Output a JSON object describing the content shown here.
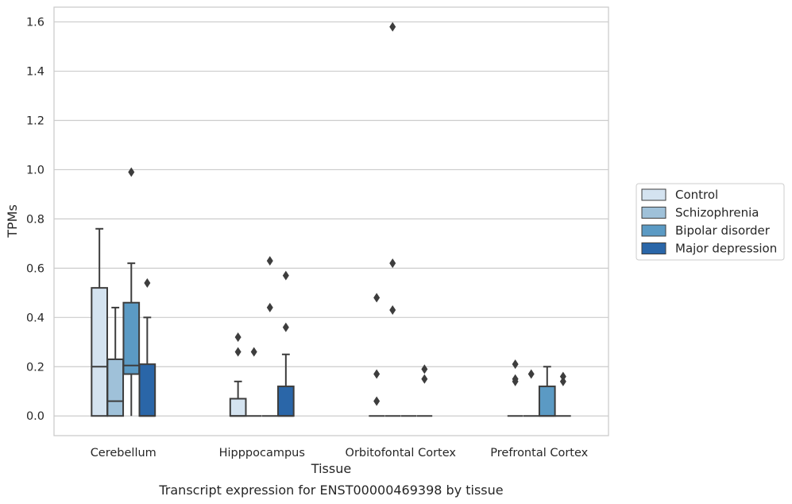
{
  "chart_data": {
    "type": "box",
    "title": "",
    "caption": "Transcript expression for ENST00000469398 by tissue",
    "xlabel": "Tissue",
    "ylabel": "TPMs",
    "ylim": [
      -0.08,
      1.66
    ],
    "yticks": [
      "0.0",
      "0.2",
      "0.4",
      "0.6",
      "0.8",
      "1.0",
      "1.2",
      "1.4",
      "1.6"
    ],
    "grid": true,
    "legend_position": "right",
    "categories": [
      "Cerebellum",
      "Hipppocampus",
      "Orbitofontal Cortex",
      "Prefrontal Cortex"
    ],
    "series": [
      {
        "name": "Control",
        "color": "#d4e3f0",
        "boxes": [
          {
            "whislo": 0.0,
            "q1": 0.0,
            "med": 0.2,
            "q3": 0.52,
            "whishi": 0.76,
            "fliers": []
          },
          {
            "whislo": 0.0,
            "q1": 0.0,
            "med": 0.0,
            "q3": 0.07,
            "whishi": 0.14,
            "fliers": [
              0.26,
              0.32
            ]
          },
          {
            "whislo": 0.0,
            "q1": 0.0,
            "med": 0.0,
            "q3": 0.0,
            "whishi": 0.0,
            "fliers": [
              0.06,
              0.17,
              0.48
            ]
          },
          {
            "whislo": 0.0,
            "q1": 0.0,
            "med": 0.0,
            "q3": 0.0,
            "whishi": 0.0,
            "fliers": [
              0.14,
              0.15,
              0.21
            ]
          }
        ]
      },
      {
        "name": "Schizophrenia",
        "color": "#9fc1d9",
        "boxes": [
          {
            "whislo": 0.0,
            "q1": 0.0,
            "med": 0.06,
            "q3": 0.23,
            "whishi": 0.44,
            "fliers": []
          },
          {
            "whislo": 0.0,
            "q1": 0.0,
            "med": 0.0,
            "q3": 0.0,
            "whishi": 0.0,
            "fliers": [
              0.26
            ]
          },
          {
            "whislo": 0.0,
            "q1": 0.0,
            "med": 0.0,
            "q3": 0.0,
            "whishi": 0.0,
            "fliers": [
              0.43,
              0.62,
              1.58
            ]
          },
          {
            "whislo": 0.0,
            "q1": 0.0,
            "med": 0.0,
            "q3": 0.0,
            "whishi": 0.0,
            "fliers": [
              0.17
            ]
          }
        ]
      },
      {
        "name": "Bipolar disorder",
        "color": "#5b9ac4",
        "boxes": [
          {
            "whislo": 0.0,
            "q1": 0.17,
            "med": 0.205,
            "q3": 0.46,
            "whishi": 0.62,
            "fliers": [
              0.99
            ]
          },
          {
            "whislo": 0.0,
            "q1": 0.0,
            "med": 0.0,
            "q3": 0.0,
            "whishi": 0.0,
            "fliers": [
              0.44,
              0.63
            ]
          },
          {
            "whislo": 0.0,
            "q1": 0.0,
            "med": 0.0,
            "q3": 0.0,
            "whishi": 0.0,
            "fliers": []
          },
          {
            "whislo": 0.0,
            "q1": 0.0,
            "med": 0.0,
            "q3": 0.12,
            "whishi": 0.2,
            "fliers": []
          }
        ]
      },
      {
        "name": "Major depression",
        "color": "#2a66a8",
        "boxes": [
          {
            "whislo": 0.0,
            "q1": 0.0,
            "med": 0.0,
            "q3": 0.21,
            "whishi": 0.4,
            "fliers": [
              0.54
            ]
          },
          {
            "whislo": 0.0,
            "q1": 0.0,
            "med": 0.0,
            "q3": 0.12,
            "whishi": 0.25,
            "fliers": [
              0.36,
              0.57
            ]
          },
          {
            "whislo": 0.0,
            "q1": 0.0,
            "med": 0.0,
            "q3": 0.0,
            "whishi": 0.0,
            "fliers": [
              0.15,
              0.19
            ]
          },
          {
            "whislo": 0.0,
            "q1": 0.0,
            "med": 0.0,
            "q3": 0.0,
            "whishi": 0.0,
            "fliers": [
              0.14,
              0.16
            ]
          }
        ]
      }
    ]
  }
}
